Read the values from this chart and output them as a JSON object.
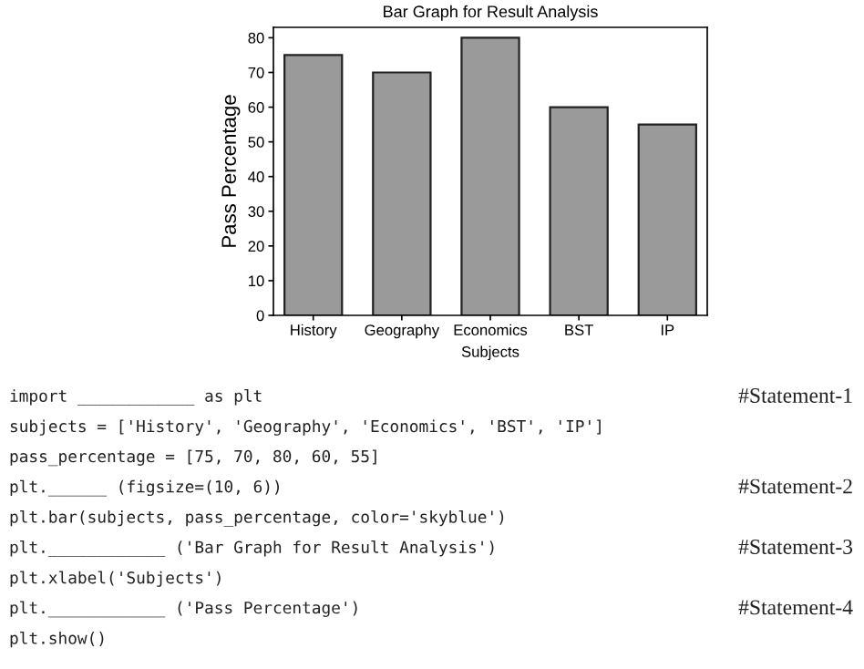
{
  "chart_data": {
    "type": "bar",
    "title": "Bar Graph for Result Analysis",
    "xlabel": "Subjects",
    "ylabel": "Pass Percentage",
    "categories": [
      "History",
      "Geography",
      "Economics",
      "BST",
      "IP"
    ],
    "values": [
      75,
      70,
      80,
      60,
      55
    ],
    "color": "#9a9a9a",
    "ylim": [
      0,
      83
    ],
    "yticks": [
      0,
      10,
      20,
      30,
      40,
      50,
      60,
      70,
      80
    ],
    "grid": false,
    "annotations": [
      "import ____________ as plt",
      "#Statement-1",
      "subjects = ['History', 'Geography', 'Economics', 'BST', 'IP']",
      "pass_percentage = [75, 70, 80, 60, 55]",
      "plt.______ (figsize=(10, 6))",
      "#Statement-2",
      "plt.bar(subjects, pass_percentage, color='skyblue')",
      "plt.____________ ('Bar Graph for Result Analysis')",
      "#Statement-3",
      "plt.xlabel('Subjects')",
      "plt.____________ ('Pass Percentage')",
      "#Statement-4",
      "plt.show()"
    ]
  }
}
